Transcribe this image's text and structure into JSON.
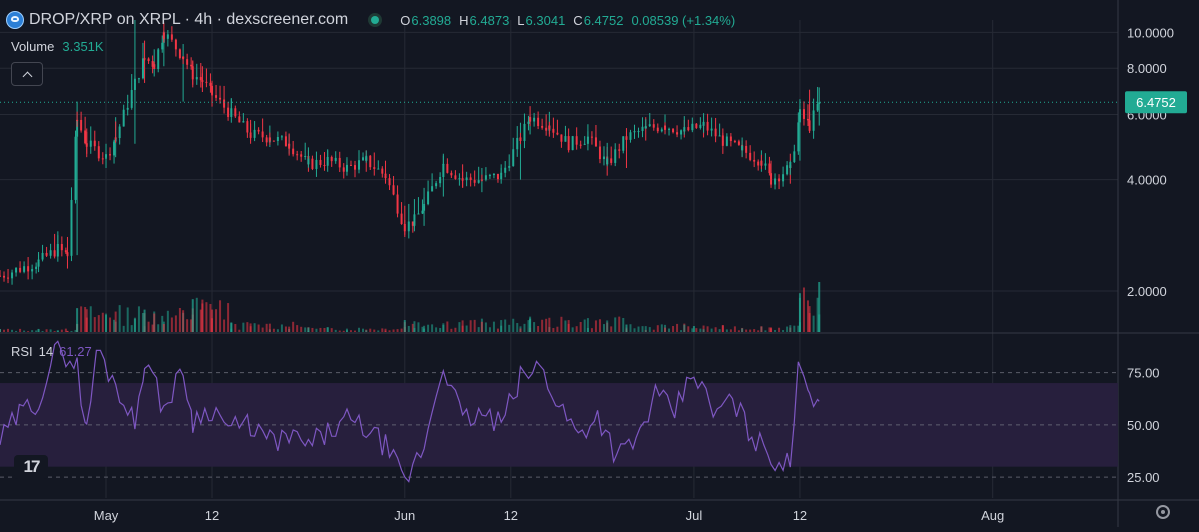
{
  "header": {
    "title": "DROP/XRP on XRPL · 4h · dexscreener.com",
    "ohlc": [
      {
        "label": "O",
        "value": "6.3898"
      },
      {
        "label": "H",
        "value": "6.4873"
      },
      {
        "label": "L",
        "value": "6.3041"
      },
      {
        "label": "C",
        "value": "6.4752"
      }
    ],
    "change": "0.08539 (+1.34%)"
  },
  "volume_legend": {
    "label": "Volume",
    "value": "3.351K"
  },
  "rsi_legend": {
    "label": "RSI",
    "period": "14",
    "value": "61.27"
  },
  "colors": {
    "background": "#131722",
    "up": "#22ab94",
    "down": "#f23645",
    "rsi_line": "#7e57c2",
    "rsi_band": "#271f3d",
    "grid": "#262a35"
  },
  "icons": {
    "collapse": "chevron-up-icon",
    "brand": "tradingview-logo",
    "settings": "gear-icon"
  },
  "chart_data": [
    {
      "type": "candlestick",
      "title": "DROP/XRP on XRPL · 4h · dexscreener.com",
      "yscale": "log",
      "ylim": [
        1.55,
        10.8
      ],
      "y_ticks": [
        2.0,
        4.0,
        6.0,
        8.0,
        10.0
      ],
      "y_tick_labels": [
        "2.0000",
        "4.0000",
        "6.0000",
        "8.0000",
        "10.0000"
      ],
      "last_price": 6.4752,
      "last_price_label": "6.4752",
      "x_tick_labels": [
        "May",
        "12",
        "Jun",
        "12",
        "Jul",
        "12",
        "Aug"
      ],
      "x_tick_positions": [
        "2025-05-01",
        "2025-05-12",
        "2025-06-01",
        "2025-06-12",
        "2025-07-01",
        "2025-07-12",
        "2025-08-01"
      ],
      "xlim": [
        "2025-04-20",
        "2025-08-14"
      ],
      "grid": true,
      "series": [
        {
          "x": [
            "2025-04-20",
            "2025-04-24",
            "2025-04-26",
            "2025-04-27",
            "2025-04-28",
            "2025-04-29",
            "2025-05-01",
            "2025-05-02",
            "2025-05-04",
            "2025-05-05",
            "2025-05-06",
            "2025-05-07",
            "2025-05-09",
            "2025-05-10",
            "2025-05-11",
            "2025-05-12",
            "2025-05-14",
            "2025-05-16",
            "2025-05-18",
            "2025-05-20",
            "2025-05-22",
            "2025-05-24",
            "2025-05-26",
            "2025-05-28",
            "2025-05-30",
            "2025-06-01",
            "2025-06-02",
            "2025-06-03",
            "2025-06-05",
            "2025-06-07",
            "2025-06-09",
            "2025-06-11",
            "2025-06-13",
            "2025-06-14",
            "2025-06-16",
            "2025-06-18",
            "2025-06-20",
            "2025-06-22",
            "2025-06-24",
            "2025-06-26",
            "2025-06-28",
            "2025-06-30",
            "2025-07-02",
            "2025-07-04",
            "2025-07-06",
            "2025-07-08",
            "2025-07-09",
            "2025-07-11",
            "2025-07-12",
            "2025-07-13",
            "2025-07-14"
          ],
          "close": [
            2.2,
            2.4,
            2.6,
            2.5,
            5.8,
            5.0,
            4.6,
            5.2,
            7.3,
            8.5,
            8.2,
            10.0,
            8.6,
            7.7,
            7.4,
            6.8,
            6.0,
            5.3,
            5.2,
            5.0,
            4.4,
            4.5,
            4.3,
            4.5,
            4.1,
            3.0,
            3.1,
            3.4,
            4.4,
            4.0,
            4.0,
            4.1,
            5.2,
            5.9,
            5.6,
            5.0,
            5.2,
            4.4,
            5.2,
            5.5,
            5.6,
            5.4,
            5.6,
            5.1,
            4.8,
            4.5,
            4.0,
            4.3,
            6.0,
            5.6,
            6.47
          ],
          "high": [
            2.3,
            2.55,
            2.9,
            2.8,
            6.5,
            5.5,
            5.0,
            5.9,
            10.8,
            9.5,
            9.0,
            10.1,
            9.3,
            8.4,
            8.1,
            7.4,
            6.6,
            5.8,
            5.6,
            5.3,
            4.8,
            4.8,
            4.6,
            4.8,
            4.5,
            3.4,
            3.3,
            3.8,
            4.7,
            4.4,
            4.3,
            4.4,
            5.7,
            6.0,
            6.1,
            5.5,
            5.4,
            4.9,
            5.4,
            5.9,
            6.0,
            5.8,
            5.8,
            5.5,
            5.1,
            4.8,
            4.5,
            4.7,
            6.6,
            7.0,
            7.1
          ],
          "low": [
            2.1,
            2.25,
            2.4,
            2.3,
            2.5,
            4.6,
            4.3,
            4.6,
            5.0,
            7.3,
            7.6,
            8.1,
            6.5,
            7.1,
            6.9,
            6.3,
            5.7,
            5.0,
            4.9,
            4.7,
            4.2,
            4.2,
            4.1,
            4.2,
            3.9,
            2.8,
            2.9,
            3.0,
            3.6,
            3.8,
            3.7,
            3.9,
            4.0,
            5.3,
            5.3,
            4.8,
            4.8,
            4.1,
            4.3,
            5.1,
            5.3,
            5.2,
            5.2,
            5.0,
            4.6,
            4.2,
            3.8,
            3.9,
            4.5,
            5.4,
            5.6
          ]
        }
      ]
    },
    {
      "type": "bar",
      "title": "Volume",
      "series": [
        {
          "name": "Volume",
          "x": [
            "2025-04-20",
            "2025-04-28",
            "2025-05-05",
            "2025-05-10",
            "2025-05-14",
            "2025-05-22",
            "2025-06-01",
            "2025-06-14",
            "2025-06-24",
            "2025-07-01",
            "2025-07-12",
            "2025-07-14"
          ],
          "values": [
            0.2,
            1.6,
            1.5,
            2.2,
            0.6,
            0.3,
            0.8,
            0.9,
            0.5,
            0.4,
            2.6,
            3.351
          ]
        }
      ]
    },
    {
      "type": "line",
      "title": "RSI 14",
      "ylim": [
        15,
        93
      ],
      "y_ticks": [
        25,
        50,
        75
      ],
      "y_tick_labels": [
        "25.00",
        "50.00",
        "75.00"
      ],
      "band": [
        30,
        70
      ],
      "series": [
        {
          "name": "RSI 14",
          "x": [
            "2025-04-20",
            "2025-04-22",
            "2025-04-24",
            "2025-04-26",
            "2025-04-28",
            "2025-04-29",
            "2025-04-30",
            "2025-05-02",
            "2025-05-04",
            "2025-05-05",
            "2025-05-07",
            "2025-05-09",
            "2025-05-10",
            "2025-05-12",
            "2025-05-14",
            "2025-05-16",
            "2025-05-18",
            "2025-05-20",
            "2025-05-22",
            "2025-05-24",
            "2025-05-26",
            "2025-05-28",
            "2025-05-30",
            "2025-06-01",
            "2025-06-03",
            "2025-06-05",
            "2025-06-07",
            "2025-06-09",
            "2025-06-11",
            "2025-06-13",
            "2025-06-15",
            "2025-06-17",
            "2025-06-19",
            "2025-06-21",
            "2025-06-23",
            "2025-06-25",
            "2025-06-27",
            "2025-06-29",
            "2025-07-01",
            "2025-07-03",
            "2025-07-05",
            "2025-07-07",
            "2025-07-09",
            "2025-07-11",
            "2025-07-12",
            "2025-07-13",
            "2025-07-14"
          ],
          "values": [
            42,
            55,
            62,
            88,
            78,
            46,
            86,
            70,
            50,
            82,
            58,
            76,
            52,
            58,
            48,
            50,
            42,
            44,
            40,
            46,
            52,
            48,
            40,
            22,
            40,
            80,
            52,
            55,
            50,
            72,
            78,
            60,
            45,
            55,
            35,
            42,
            64,
            56,
            76,
            55,
            62,
            45,
            35,
            30,
            84,
            66,
            61.27
          ]
        }
      ]
    }
  ]
}
